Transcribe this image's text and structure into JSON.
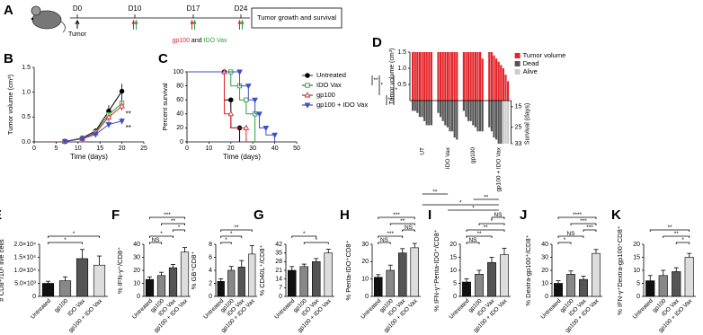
{
  "timeline": {
    "panel": "A",
    "days": [
      "D0",
      "D10",
      "D17",
      "D24"
    ],
    "start": "Tumor",
    "vaccines": [
      "gp100",
      "and",
      "IDO Vax"
    ],
    "outcome": "Tumor growth and survival"
  },
  "chart_data": [
    {
      "type": "line",
      "panel": "B",
      "xlabel": "Time (days)",
      "ylabel": "Tumor volume (cm³)",
      "x": [
        7,
        11,
        14,
        17,
        20
      ],
      "xlim": [
        0,
        25
      ],
      "xticks": [
        0,
        5,
        10,
        15,
        20,
        25
      ],
      "ylim": [
        0,
        1.5
      ],
      "yticks": [
        {
          "value": 0,
          "label": "0.0"
        },
        0.5,
        {
          "value": 1,
          "label": "1.0"
        },
        1.5
      ],
      "series": [
        {
          "color": "#000000",
          "marker": "circle",
          "values": [
            0.01,
            0.08,
            0.22,
            0.62,
            1.02
          ],
          "errors": [
            0.01,
            0.03,
            0.05,
            0.12,
            0.15
          ]
        },
        {
          "color": "#2e9e3f",
          "marker": "square-open",
          "values": [
            0.01,
            0.07,
            0.2,
            0.55,
            0.78
          ],
          "errors": [
            0.01,
            0.02,
            0.04,
            0.1,
            0.1
          ]
        },
        {
          "color": "#e3262b",
          "marker": "triangle-open",
          "values": [
            0.01,
            0.07,
            0.18,
            0.5,
            0.72
          ],
          "errors": [
            0.01,
            0.02,
            0.04,
            0.08,
            0.08
          ]
        },
        {
          "color": "#3a4fd1",
          "marker": "triangle-down",
          "values": [
            0.01,
            0.06,
            0.15,
            0.35,
            0.42
          ],
          "errors": [
            0.01,
            0.02,
            0.03,
            0.06,
            0.06
          ]
        }
      ],
      "annotations": [
        {
          "text": "**",
          "color": "#e3262b"
        },
        {
          "text": "**",
          "color": "#3a4fd1"
        }
      ]
    },
    {
      "type": "step",
      "panel": "C",
      "xlabel": "Time (days)",
      "ylabel": "Percent survival",
      "xlim": [
        0,
        50
      ],
      "xticks": [
        0,
        10,
        20,
        30,
        40,
        50
      ],
      "ylim": [
        0,
        100
      ],
      "yticks": [
        0,
        20,
        40,
        60,
        80,
        100
      ],
      "series": [
        {
          "name": "Untreated",
          "color": "#000000",
          "marker": "circle",
          "x": [
            0,
            17,
            20,
            24
          ],
          "values": [
            100,
            60,
            20,
            0
          ]
        },
        {
          "name": "IDO Vax",
          "color": "#2e9e3f",
          "marker": "square-open",
          "x": [
            0,
            20,
            24,
            27,
            31
          ],
          "values": [
            100,
            80,
            60,
            40,
            0
          ]
        },
        {
          "name": "gp100",
          "color": "#e3262b",
          "marker": "triangle-open",
          "x": [
            0,
            17,
            20,
            27
          ],
          "values": [
            100,
            40,
            20,
            0
          ]
        },
        {
          "name": "gp100 + IDO Vax",
          "color": "#3a4fd1",
          "marker": "triangle-down",
          "x": [
            0,
            24,
            28,
            31,
            33,
            36,
            40
          ],
          "values": [
            100,
            80,
            60,
            40,
            20,
            10,
            0
          ]
        }
      ],
      "brackets": [
        {
          "between": [
            "Untreated",
            "IDO Vax"
          ],
          "label": "**"
        },
        {
          "between": [
            "Untreated",
            "gp100"
          ],
          "label": "*"
        },
        {
          "between": [
            "gp100",
            "gp100 + IDO Vax"
          ],
          "label": "**"
        },
        {
          "between": [
            "Untreated",
            "gp100 + IDO Vax"
          ],
          "label": "*"
        }
      ]
    },
    {
      "type": "waterfall",
      "panel": "D",
      "ylabel": "Tumor volume (cm³)",
      "y2label": "Survival (days)",
      "ylim": [
        0,
        1.5
      ],
      "yticks": [
        0.5,
        {
          "value": 1,
          "label": "1.0"
        },
        1.5
      ],
      "y2lim": [
        12,
        33
      ],
      "y2ticks": [
        15,
        25,
        33
      ],
      "legend": [
        {
          "name": "Tumor volume",
          "color": "#e3262b"
        },
        {
          "name": "Dead",
          "color": "#555555"
        },
        {
          "name": "Alive",
          "color": "#cccccc"
        }
      ],
      "groups": [
        {
          "name": "UT",
          "volumes": [
            1.5,
            1.5,
            1.5,
            1.5,
            1.5,
            1.5,
            1.5,
            1.5,
            1.5
          ],
          "survival": [
            17,
            17,
            18,
            20,
            20,
            22,
            24,
            24,
            24
          ],
          "alive": [
            false,
            false,
            false,
            false,
            false,
            false,
            false,
            false,
            false
          ]
        },
        {
          "name": "IDO Vax",
          "volumes": [
            1.5,
            1.5,
            1.5,
            1.5,
            1.5,
            1.5,
            1.5,
            1.5,
            1.5
          ],
          "survival": [
            18,
            20,
            22,
            24,
            25,
            27,
            27,
            30,
            31
          ],
          "alive": [
            false,
            false,
            false,
            false,
            false,
            false,
            false,
            false,
            false
          ]
        },
        {
          "name": "gp100",
          "volumes": [
            1.5,
            1.5,
            1.5,
            1.5,
            1.5,
            1.5,
            1.5,
            1.5,
            1.3
          ],
          "survival": [
            17,
            20,
            22,
            22,
            24,
            25,
            27,
            27,
            27
          ],
          "alive": [
            false,
            false,
            false,
            false,
            false,
            false,
            false,
            false,
            false
          ]
        },
        {
          "name": "gp100 + IDO Vax",
          "volumes": [
            1.5,
            1.5,
            1.4,
            1.3,
            1.2,
            1.1,
            1.0,
            0.8,
            0.6
          ],
          "survival": [
            25,
            27,
            30,
            31,
            33,
            33,
            33,
            33,
            33
          ],
          "alive": [
            false,
            false,
            false,
            false,
            false,
            false,
            true,
            true,
            true
          ]
        }
      ],
      "brackets": [
        {
          "between": [
            "UT",
            "IDO Vax"
          ],
          "label": "**"
        },
        {
          "between": [
            "gp100",
            "gp100 + IDO Vax"
          ],
          "label": "**"
        },
        {
          "between": [
            "UT",
            "gp100 + IDO Vax"
          ],
          "label": "*"
        },
        {
          "between": [
            "IDO Vax",
            "gp100 + IDO Vax"
          ],
          "label": "*"
        }
      ]
    },
    {
      "type": "bar",
      "panel": "E",
      "ylabel": "# CD8⁺/10⁶ live cells",
      "categories": [
        "Untreated",
        "gp100",
        "IDO Vax",
        "gp100 + IDO Vax"
      ],
      "colors": [
        "#111111",
        "#888888",
        "#555555",
        "#dddddd"
      ],
      "values": [
        5000,
        6000,
        14500,
        12000
      ],
      "errors": [
        800,
        1500,
        3500,
        3500
      ],
      "ylim": [
        0,
        20000
      ],
      "yticks": [
        0,
        {
          "value": 5000,
          "label": "5.0×10³"
        },
        {
          "value": 10000,
          "label": "1.0×10⁴"
        },
        {
          "value": 15000,
          "label": "1.5×10⁴"
        },
        {
          "value": 20000,
          "label": "2.0×10⁴"
        }
      ],
      "brackets": [
        {
          "between": [
            "Untreated",
            "gp100 + IDO Vax"
          ],
          "label": "*"
        },
        {
          "between": [
            "Untreated",
            "IDO Vax"
          ],
          "label": "*"
        }
      ]
    },
    {
      "type": "bar",
      "panel": "F",
      "ylabel": "% IFN-γ⁺/CD8⁺",
      "categories": [
        "Untreated",
        "gp100",
        "IDO Vax",
        "gp100 + IDO Vax"
      ],
      "colors": [
        "#111111",
        "#888888",
        "#555555",
        "#dddddd"
      ],
      "values": [
        13,
        16,
        22,
        34
      ],
      "errors": [
        2,
        2.5,
        2.5,
        3.5
      ],
      "ylim": [
        0,
        40
      ],
      "yticks": [
        0,
        10,
        20,
        30,
        40
      ],
      "brackets": [
        {
          "between": [
            "Untreated",
            "gp100 + IDO Vax"
          ],
          "label": "***"
        },
        {
          "between": [
            "gp100",
            "gp100 + IDO Vax"
          ],
          "label": "**"
        },
        {
          "between": [
            "IDO Vax",
            "gp100 + IDO Vax"
          ],
          "label": "*"
        },
        {
          "between": [
            "Untreated",
            "IDO Vax"
          ],
          "label": "*"
        },
        {
          "between": [
            "Untreated",
            "gp100"
          ],
          "label": "NS"
        }
      ]
    },
    {
      "type": "bar",
      "ylabel": "% GB⁺CD8⁺",
      "categories": [
        "Untreated",
        "gp100",
        "IDO Vax",
        "gp100 + IDO Vax"
      ],
      "colors": [
        "#111111",
        "#888888",
        "#555555",
        "#dddddd"
      ],
      "values": [
        2.3,
        4,
        4.5,
        6.5
      ],
      "errors": [
        0.4,
        0.6,
        1,
        1.3
      ],
      "ylim": [
        0,
        8
      ],
      "yticks": [
        0,
        2,
        4,
        6,
        8
      ],
      "brackets": [
        {
          "between": [
            "Untreated",
            "gp100 + IDO Vax"
          ],
          "label": "**"
        },
        {
          "between": [
            "Untreated",
            "IDO Vax"
          ],
          "label": "*"
        },
        {
          "between": [
            "Untreated",
            "gp100"
          ],
          "label": "*"
        }
      ]
    },
    {
      "type": "bar",
      "panel": "G",
      "ylabel": "% CD40L⁺/CD8⁺",
      "categories": [
        "Untreated",
        "gp100",
        "IDO Vax",
        "gp100 + IDO Vax"
      ],
      "colors": [
        "#111111",
        "#888888",
        "#555555",
        "#dddddd"
      ],
      "values": [
        21,
        24,
        28,
        35
      ],
      "errors": [
        3,
        2,
        2.5,
        3
      ],
      "ylim": [
        0,
        42
      ],
      "yticks": [
        0,
        7,
        14,
        21,
        28,
        35,
        42
      ],
      "brackets": [
        {
          "between": [
            "Untreated",
            "IDO Vax"
          ],
          "label": "*"
        },
        {
          "between": [
            "gp100",
            "gp100 + IDO Vax"
          ],
          "label": "*"
        }
      ]
    },
    {
      "type": "bar",
      "panel": "H",
      "ylabel": "% Penta-IDO⁺CD8⁺",
      "categories": [
        "Untreated",
        "gp100",
        "IDO Vax",
        "gp100 + IDO Vax"
      ],
      "colors": [
        "#111111",
        "#888888",
        "#555555",
        "#dddddd"
      ],
      "values": [
        11,
        15,
        25,
        28
      ],
      "errors": [
        1.5,
        3,
        2.5,
        2.5
      ],
      "ylim": [
        0,
        30
      ],
      "yticks": [
        0,
        10,
        20,
        30
      ],
      "brackets": [
        {
          "between": [
            "Untreated",
            "gp100 + IDO Vax"
          ],
          "label": "***"
        },
        {
          "between": [
            "gp100",
            "gp100 + IDO Vax"
          ],
          "label": "**"
        },
        {
          "between": [
            "IDO Vax",
            "gp100 + IDO Vax"
          ],
          "label": "NS"
        },
        {
          "between": [
            "Untreated",
            "IDO Vax"
          ],
          "label": "***"
        },
        {
          "between": [
            "Untreated",
            "gp100"
          ],
          "label": "NS"
        }
      ]
    },
    {
      "type": "bar",
      "panel": "I",
      "ylabel": "% IFN-γ⁺Penta-IDO⁺/CD8⁺",
      "categories": [
        "Untreated",
        "gp100",
        "IDO Vax",
        "gp100 + IDO Vax"
      ],
      "colors": [
        "#111111",
        "#888888",
        "#555555",
        "#dddddd"
      ],
      "values": [
        5.5,
        8.5,
        13,
        16
      ],
      "errors": [
        1.2,
        1.5,
        2,
        2.5
      ],
      "ylim": [
        0,
        20
      ],
      "yticks": [
        0,
        5,
        10,
        15,
        20
      ],
      "brackets": [
        {
          "between": [
            "IDO Vax",
            "gp100 + IDO Vax"
          ],
          "label": "NS"
        },
        {
          "between": [
            "gp100",
            "gp100 + IDO Vax"
          ],
          "label": "*"
        },
        {
          "between": [
            "Untreated",
            "gp100 + IDO Vax"
          ],
          "label": "**"
        },
        {
          "between": [
            "Untreated",
            "IDO Vax"
          ],
          "label": "**"
        },
        {
          "between": [
            "Untreated",
            "gp100"
          ],
          "label": "NS"
        }
      ]
    },
    {
      "type": "bar",
      "panel": "J",
      "ylabel": "% Dextra-gp100⁺/CD8⁺",
      "categories": [
        "Untreated",
        "gp100",
        "IDO Vax",
        "gp100 + IDO Vax"
      ],
      "colors": [
        "#111111",
        "#888888",
        "#555555",
        "#dddddd"
      ],
      "values": [
        10,
        17,
        13,
        33
      ],
      "errors": [
        2,
        2.5,
        2.5,
        3
      ],
      "ylim": [
        0,
        40
      ],
      "yticks": [
        0,
        10,
        20,
        30,
        40
      ],
      "brackets": [
        {
          "between": [
            "Untreated",
            "gp100 + IDO Vax"
          ],
          "label": "****"
        },
        {
          "between": [
            "gp100",
            "gp100 + IDO Vax"
          ],
          "label": "***"
        },
        {
          "between": [
            "IDO Vax",
            "gp100 + IDO Vax"
          ],
          "label": "***"
        },
        {
          "between": [
            "Untreated",
            "IDO Vax"
          ],
          "label": "NS"
        },
        {
          "between": [
            "Untreated",
            "gp100"
          ],
          "label": "*"
        }
      ]
    },
    {
      "type": "bar",
      "panel": "K",
      "ylabel": "% IFN-γ⁺Dextra-gp100⁺CD8⁺",
      "categories": [
        "Untreated",
        "gp100",
        "IDO Vax",
        "gp100 + IDO Vax"
      ],
      "colors": [
        "#111111",
        "#888888",
        "#555555",
        "#dddddd"
      ],
      "values": [
        6,
        8,
        9.5,
        15
      ],
      "errors": [
        2,
        2,
        1.5,
        1.5
      ],
      "ylim": [
        0,
        20
      ],
      "yticks": [
        0,
        5,
        10,
        15,
        20
      ],
      "brackets": [
        {
          "between": [
            "Untreated",
            "gp100 + IDO Vax"
          ],
          "label": "**"
        },
        {
          "between": [
            "gp100",
            "gp100 + IDO Vax"
          ],
          "label": "**"
        },
        {
          "between": [
            "IDO Vax",
            "gp100 + IDO Vax"
          ],
          "label": "*"
        }
      ]
    }
  ]
}
